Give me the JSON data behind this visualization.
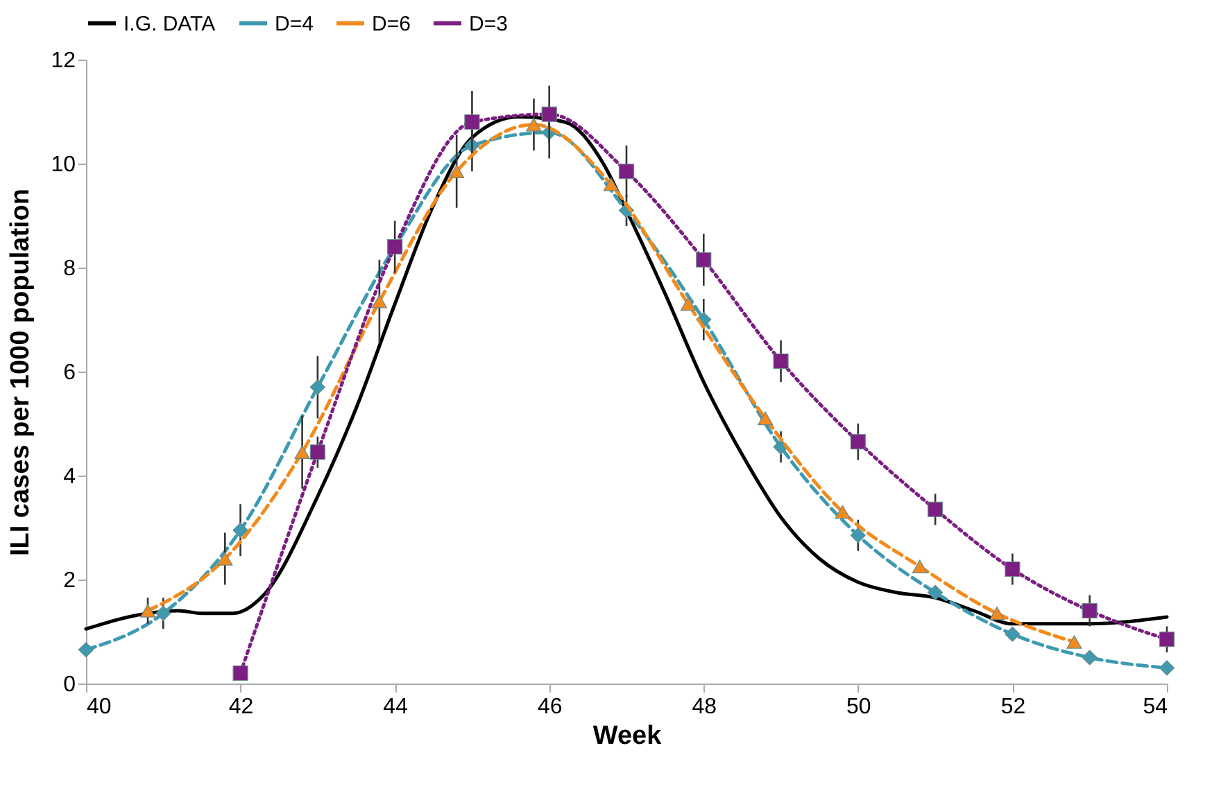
{
  "chart_data": {
    "type": "line",
    "xlabel": "Week",
    "ylabel": "ILI cases per 1000 population",
    "xlim": [
      40,
      54
    ],
    "xticks": [
      40,
      42,
      44,
      46,
      48,
      50,
      52,
      54
    ],
    "ylim": [
      0,
      12
    ],
    "yticks": [
      0,
      2,
      4,
      6,
      8,
      10,
      12
    ],
    "grid": false,
    "legend": "top",
    "series": [
      {
        "name": "I.G. DATA",
        "color": "#000000",
        "marker": "none",
        "line_style": "solid",
        "x": [
          40,
          40.8,
          41.2,
          41.5,
          41.9,
          42.3,
          43,
          43.5,
          44,
          44.5,
          45,
          45.6,
          46.2,
          46.7,
          47,
          47.5,
          48,
          48.5,
          49,
          49.5,
          50,
          50.5,
          51,
          51.5,
          52,
          53,
          54
        ],
        "values": [
          1.05,
          1.35,
          1.4,
          1.35,
          1.35,
          1.7,
          3.6,
          5.3,
          7.3,
          9.2,
          10.5,
          10.9,
          10.8,
          10.0,
          9.1,
          7.5,
          5.8,
          4.4,
          3.2,
          2.4,
          1.95,
          1.75,
          1.65,
          1.4,
          1.15,
          1.15,
          1.28
        ]
      },
      {
        "name": "D=4",
        "color": "#3d9ab0",
        "marker": "diamond",
        "line_style": "dashed",
        "x": [
          40,
          41,
          42,
          43,
          44,
          45,
          46,
          47,
          48,
          49,
          50,
          51,
          52,
          53,
          54
        ],
        "values": [
          0.65,
          1.35,
          2.95,
          5.7,
          8.4,
          10.35,
          10.6,
          9.1,
          7.0,
          4.55,
          2.85,
          1.75,
          0.95,
          0.5,
          0.3
        ],
        "errors": [
          null,
          0.3,
          0.5,
          0.6,
          null,
          0.5,
          0.5,
          0.3,
          0.4,
          0.3,
          0.3,
          null,
          null,
          null,
          null
        ]
      },
      {
        "name": "D=6",
        "color": "#f28a1c",
        "marker": "triangle",
        "line_style": "dashed",
        "x": [
          40.8,
          41.8,
          42.8,
          43.8,
          44.8,
          45.8,
          46.8,
          47.8,
          48.8,
          49.8,
          50.8,
          51.8,
          52.8
        ],
        "values": [
          1.4,
          2.4,
          4.45,
          7.35,
          9.85,
          10.75,
          9.6,
          7.3,
          5.1,
          3.3,
          2.25,
          1.35,
          0.8
        ],
        "errors": [
          0.25,
          0.5,
          0.7,
          0.8,
          0.7,
          0.5,
          null,
          null,
          null,
          null,
          null,
          null,
          null
        ]
      },
      {
        "name": "D=3",
        "color": "#7b1f82",
        "marker": "square",
        "line_style": "dotted",
        "x": [
          42,
          43,
          44,
          45,
          46,
          47,
          48,
          49,
          50,
          51,
          52,
          53,
          54
        ],
        "values": [
          0.2,
          4.45,
          8.4,
          10.8,
          10.95,
          9.85,
          8.15,
          6.2,
          4.65,
          3.35,
          2.2,
          1.4,
          0.85
        ],
        "errors": [
          null,
          0.3,
          0.5,
          0.6,
          0.55,
          0.5,
          0.5,
          0.4,
          0.35,
          0.3,
          0.3,
          0.3,
          0.25
        ]
      }
    ]
  }
}
